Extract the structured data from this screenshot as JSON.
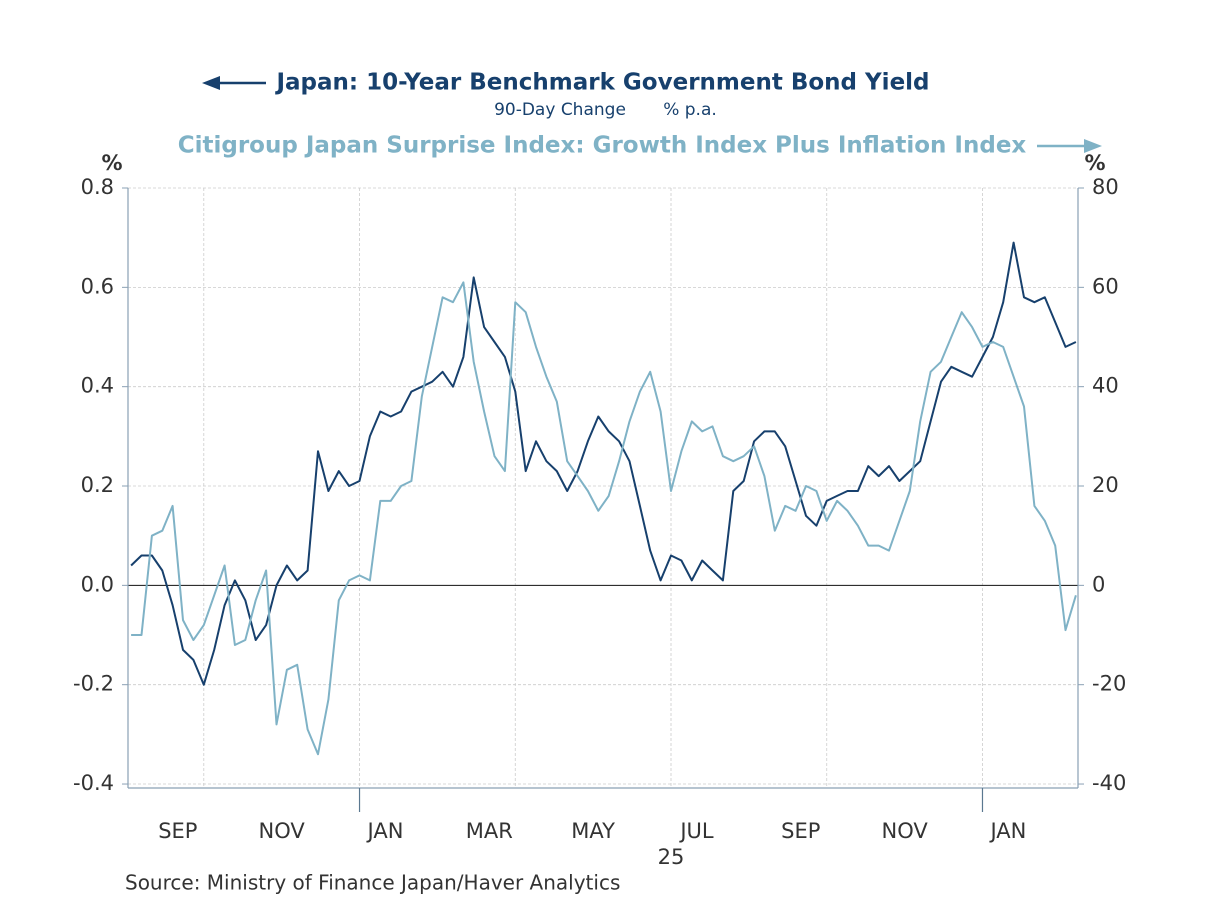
{
  "chart_data": {
    "type": "line",
    "title_note": "90-Day Change",
    "title_unit": "% p.a.",
    "y_label": "%",
    "y2_label": "%",
    "source": "Source:  Ministry of Finance Japan/Haver Analytics",
    "x": [
      -4.4,
      -4.2,
      -4.0,
      -3.8,
      -3.6,
      -3.4,
      -3.2,
      -3.0,
      -2.8,
      -2.6,
      -2.4,
      -2.2,
      -2.0,
      -1.8,
      -1.6,
      -1.4,
      -1.2,
      -1.0,
      -0.8,
      -0.6,
      -0.4,
      -0.2,
      0.0,
      0.2,
      0.4,
      0.6,
      0.8,
      1.0,
      1.2,
      1.4,
      1.6,
      1.8,
      2.0,
      2.2,
      2.4,
      2.6,
      2.8,
      3.0,
      3.2,
      3.4,
      3.6,
      3.8,
      4.0,
      4.2,
      4.4,
      4.6,
      4.8,
      5.0,
      5.2,
      5.4,
      5.6,
      5.8,
      6.0,
      6.2,
      6.4,
      6.6,
      6.8,
      7.0,
      7.2,
      7.4,
      7.6,
      7.8,
      8.0,
      8.2,
      8.4,
      8.6,
      8.8,
      9.0,
      9.2,
      9.4,
      9.6,
      9.8,
      10.0,
      10.2,
      10.4,
      10.6,
      10.8,
      11.0,
      11.2,
      11.4,
      11.6,
      11.8,
      12.0,
      12.2,
      12.4,
      12.6,
      12.8,
      13.0,
      13.2,
      13.4,
      13.6,
      13.8
    ],
    "series": [
      {
        "name": "Japan: 10-Year Benchmark Government Bond Yield",
        "color": "#17406d",
        "axis": "y",
        "values": [
          0.04,
          0.06,
          0.06,
          0.03,
          -0.04,
          -0.13,
          -0.15,
          -0.2,
          -0.13,
          -0.04,
          0.01,
          -0.03,
          -0.11,
          -0.08,
          0.0,
          0.04,
          0.01,
          0.03,
          0.27,
          0.19,
          0.23,
          0.2,
          0.21,
          0.3,
          0.35,
          0.34,
          0.35,
          0.39,
          0.4,
          0.41,
          0.43,
          0.4,
          0.46,
          0.62,
          0.52,
          0.49,
          0.46,
          0.39,
          0.23,
          0.29,
          0.25,
          0.23,
          0.19,
          0.23,
          0.29,
          0.34,
          0.31,
          0.29,
          0.25,
          0.16,
          0.07,
          0.01,
          0.06,
          0.05,
          0.01,
          0.05,
          0.03,
          0.01,
          0.19,
          0.21,
          0.29,
          0.31,
          0.31,
          0.28,
          0.21,
          0.14,
          0.12,
          0.17,
          0.18,
          0.19,
          0.19,
          0.24,
          0.22,
          0.24,
          0.21,
          0.23,
          0.25,
          0.33,
          0.41,
          0.44,
          0.43,
          0.42,
          0.46,
          0.5,
          0.57,
          0.69,
          0.58,
          0.57,
          0.58,
          0.53,
          0.48,
          0.49
        ]
      },
      {
        "name": "Citigroup Japan Surprise Index: Growth Index Plus Inflation Index",
        "color": "#7fb2c6",
        "axis": "y2",
        "values": [
          -10,
          -10,
          10,
          11,
          16,
          -7,
          -11,
          -8,
          -2,
          4,
          -12,
          -11,
          -3,
          3,
          -28,
          -17,
          -16,
          -29,
          -34,
          -23,
          -3,
          1,
          2,
          1,
          17,
          17,
          20,
          21,
          38,
          48,
          58,
          57,
          61,
          45,
          35,
          26,
          23,
          57,
          55,
          48,
          42,
          37,
          25,
          22,
          19,
          15,
          18,
          25,
          33,
          39,
          43,
          35,
          19,
          27,
          33,
          31,
          32,
          26,
          25,
          26,
          28,
          22,
          11,
          16,
          15,
          20,
          19,
          13,
          17,
          15,
          12,
          8,
          8,
          7,
          13,
          19,
          33,
          43,
          45,
          50,
          55,
          52,
          48,
          49,
          48,
          42,
          36,
          16,
          13,
          8,
          -9,
          -2
        ]
      }
    ],
    "xlim": [
      -4.46,
      13.84
    ],
    "xticks": [
      {
        "value": -3.5,
        "label": "SEP"
      },
      {
        "value": -1.5,
        "label": "NOV"
      },
      {
        "value": 0.5,
        "label": "JAN"
      },
      {
        "value": 2.5,
        "label": "MAR"
      },
      {
        "value": 4.5,
        "label": "MAY"
      },
      {
        "value": 6.5,
        "label": "JUL"
      },
      {
        "value": 8.5,
        "label": "SEP"
      },
      {
        "value": 10.5,
        "label": "NOV"
      },
      {
        "value": 12.5,
        "label": "JAN"
      }
    ],
    "xgrid": [
      -3,
      0,
      3,
      6,
      9,
      12
    ],
    "xmajor": [
      0,
      12
    ],
    "year_label": {
      "value": 6,
      "label": "25"
    },
    "ylim": [
      -0.408,
      0.8
    ],
    "yticks": [
      -0.4,
      -0.2,
      {
        "value": 0,
        "label": "0.0"
      },
      0.2,
      0.4,
      0.6,
      0.8
    ],
    "y2lim": [
      -40.8,
      80
    ],
    "y2ticks": [
      -40,
      -20,
      0,
      20,
      40,
      60,
      80
    ],
    "grid": true
  }
}
